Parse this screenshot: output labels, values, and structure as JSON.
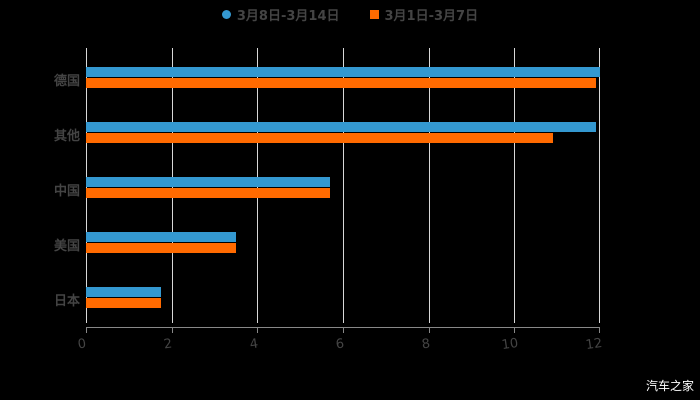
{
  "chart_data": {
    "type": "bar",
    "orientation": "horizontal",
    "title": "",
    "xlabel": "",
    "ylabel": "",
    "categories": [
      "德国",
      "其他",
      "中国",
      "美国",
      "日本"
    ],
    "series": [
      {
        "name": "3月8日-3月14日",
        "color": "#3498d0",
        "values": [
          12.0,
          11.9,
          5.7,
          3.5,
          1.75
        ]
      },
      {
        "name": "3月1日-3月7日",
        "color": "#ff6a00",
        "values": [
          11.9,
          10.9,
          5.7,
          3.5,
          1.75
        ]
      }
    ],
    "xlim": [
      0,
      12
    ],
    "xticks": [
      "0",
      "2",
      "4",
      "6",
      "8",
      "10",
      "12"
    ],
    "grid": true,
    "legend_position": "top"
  },
  "legend": {
    "item1": "3月8日-3月14日",
    "item2": "3月1日-3月7日"
  },
  "watermark": "汽车之家"
}
